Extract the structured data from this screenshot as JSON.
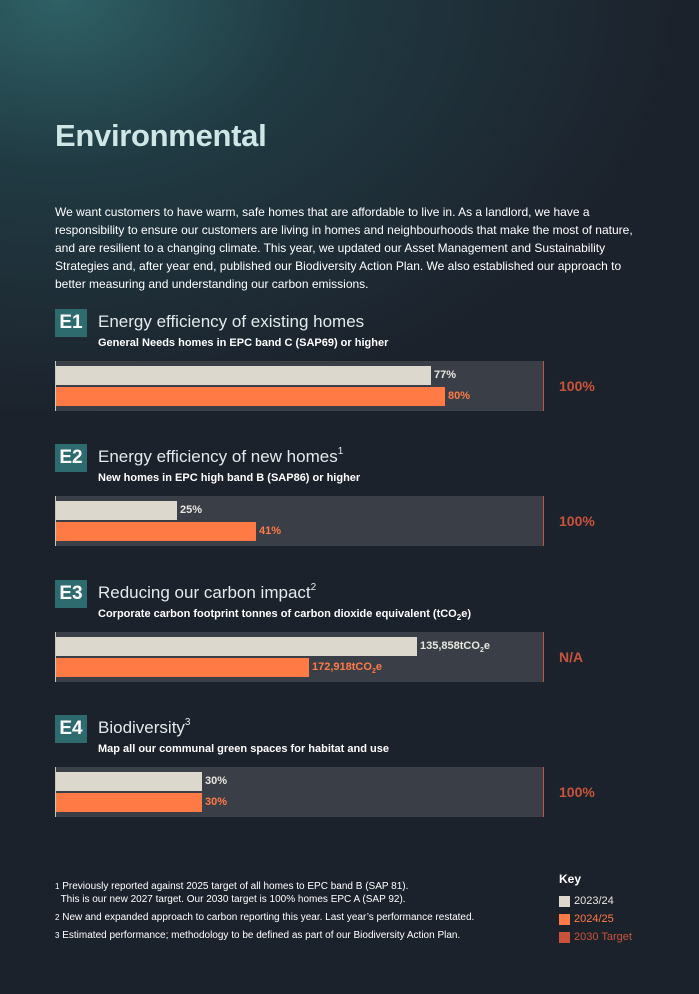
{
  "page": {
    "title": "Environmental"
  },
  "intro": "We want customers to have warm, safe homes that are affordable to live in. As a landlord, we have a responsibility to ensure our customers are living in homes and neighbourhoods that make the most of nature, and are resilient to a changing climate. This year, we updated our Asset Management and Sustainability Strategies and, after year end, published our Biodiversity Action Plan. We also established our approach to better measuring and understanding our carbon emissions.",
  "colors": {
    "prev": "#dcd8cd",
    "current": "#ff7a45",
    "target": "#c9533a",
    "badge": "#2e6b6e"
  },
  "sections": [
    {
      "badge": "E1",
      "title": "Energy efficiency of existing homes",
      "note": "",
      "subtitle": "General Needs homes in EPC band C (SAP69) or higher",
      "prev_fraction": 0.77,
      "prev_label": "77%",
      "current_fraction": 0.8,
      "current_label": "80%",
      "target_label": "100%"
    },
    {
      "badge": "E2",
      "title": "Energy efficiency of new homes",
      "note": "1",
      "subtitle": "New homes in EPC high band B (SAP86) or higher",
      "prev_fraction": 0.25,
      "prev_label": "25%",
      "current_fraction": 0.41,
      "current_label": "41%",
      "target_label": "100%"
    },
    {
      "badge": "E3",
      "title": "Reducing our carbon impact",
      "note": "2",
      "subtitle": "Corporate carbon footprint tonnes of carbon dioxide equivalent (tCO",
      "subtitle_sub": "2",
      "subtitle_end": "e)",
      "prev_value": 135858,
      "prev_label": "135,858tCO",
      "current_value": 172918,
      "current_label": "172,918tCO",
      "unit_sub": "2",
      "unit_end": "e",
      "target_label": "N/A"
    },
    {
      "badge": "E4",
      "title": "Biodiversity",
      "note": "3",
      "subtitle": "Map all our communal green spaces for habitat and use",
      "prev_fraction": 0.3,
      "prev_label": "30%",
      "current_fraction": 0.3,
      "current_label": "30%",
      "target_label": "100%"
    }
  ],
  "footnotes": [
    {
      "mark": "1",
      "lines": [
        "Previously reported against 2025 target of all homes to EPC band B (SAP 81).",
        "This is our new 2027 target. Our 2030 target is 100% homes EPC A (SAP 92)."
      ]
    },
    {
      "mark": "2",
      "lines": [
        "New and expanded approach to carbon reporting this year. Last year’s performance restated."
      ]
    },
    {
      "mark": "3",
      "lines": [
        "Estimated performance; methodology to be defined as part of our Biodiversity Action Plan."
      ]
    }
  ],
  "key": {
    "title": "Key",
    "items": [
      {
        "label": "2023/24",
        "color": "#dcd8cd",
        "text_color": "#e8e6e0"
      },
      {
        "label": "2024/25",
        "color": "#ff7a45",
        "text_color": "#ff7a45"
      },
      {
        "label": "2030 Target",
        "color": "#c9533a",
        "text_color": "#c9533a"
      }
    ]
  }
}
